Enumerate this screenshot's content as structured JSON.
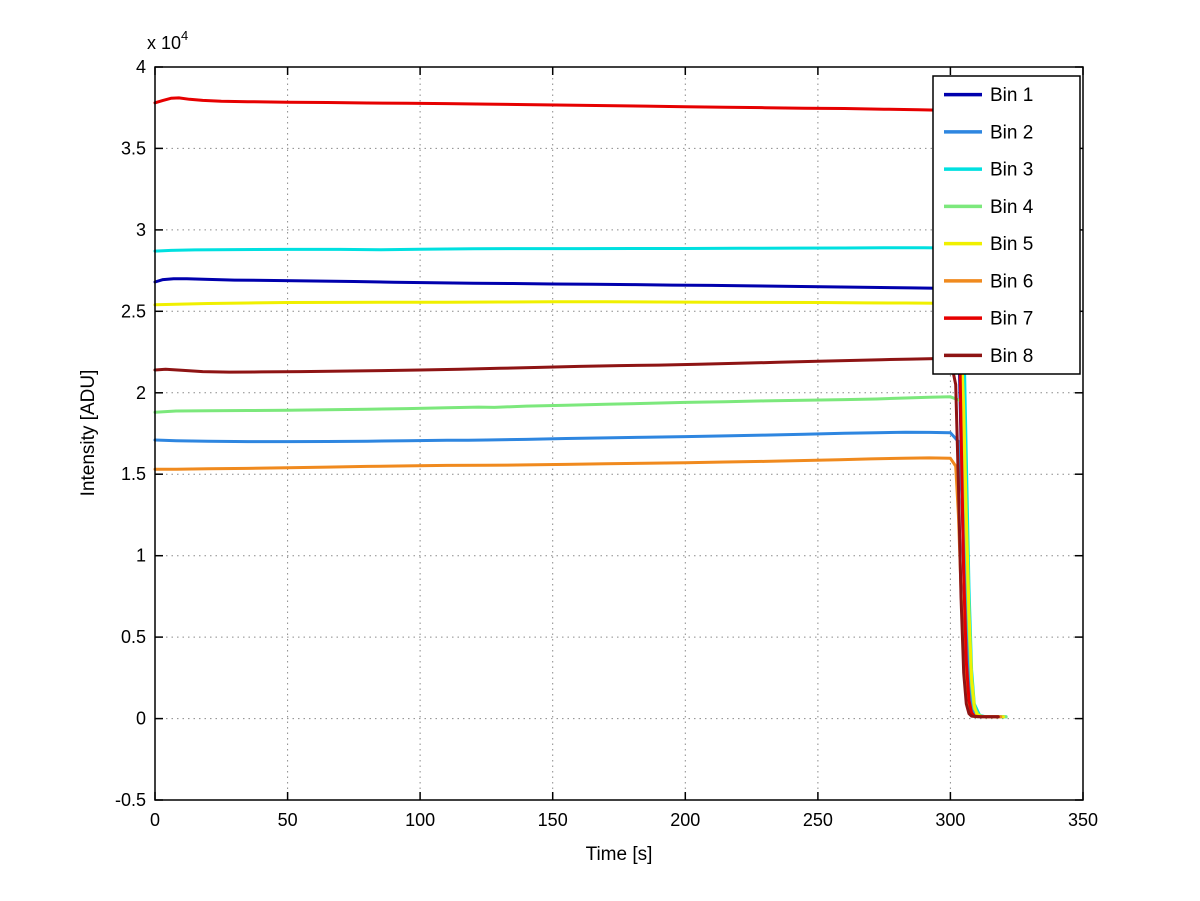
{
  "figure": {
    "background": "#ffffff"
  },
  "chart_data": {
    "type": "line",
    "title": "",
    "xlabel": "Time [s]",
    "ylabel": "Intensity [ADU]",
    "y_exponent_prefix": "x 10",
    "y_exponent": "4",
    "xlim": [
      0,
      350
    ],
    "ylim": [
      -5000,
      40000
    ],
    "x_ticks": [
      0,
      50,
      100,
      150,
      200,
      250,
      300,
      350
    ],
    "x_tick_labels": [
      "0",
      "50",
      "100",
      "150",
      "200",
      "250",
      "300",
      "350"
    ],
    "y_ticks": [
      -5000,
      0,
      5000,
      10000,
      15000,
      20000,
      25000,
      30000,
      35000,
      40000
    ],
    "y_tick_labels": [
      "-0.5",
      "0",
      "0.5",
      "1",
      "1.5",
      "2",
      "2.5",
      "3",
      "3.5",
      "4"
    ],
    "grid": true,
    "grid_style": "dotted",
    "legend_position": "top-right",
    "axes_color": "#000000",
    "background": "#ffffff",
    "series": [
      {
        "name": "Bin 1",
        "color": "#0000AD",
        "points": [
          [
            0,
            26800
          ],
          [
            3,
            26950
          ],
          [
            7,
            27000
          ],
          [
            12,
            27000
          ],
          [
            20,
            26960
          ],
          [
            30,
            26920
          ],
          [
            45,
            26890
          ],
          [
            60,
            26860
          ],
          [
            75,
            26830
          ],
          [
            90,
            26790
          ],
          [
            105,
            26760
          ],
          [
            120,
            26730
          ],
          [
            135,
            26710
          ],
          [
            150,
            26680
          ],
          [
            165,
            26660
          ],
          [
            180,
            26640
          ],
          [
            195,
            26610
          ],
          [
            210,
            26590
          ],
          [
            225,
            26560
          ],
          [
            240,
            26530
          ],
          [
            255,
            26500
          ],
          [
            270,
            26470
          ],
          [
            285,
            26440
          ],
          [
            295,
            26420
          ],
          [
            301,
            26400
          ],
          [
            303,
            24500
          ],
          [
            304,
            17000
          ],
          [
            305,
            9000
          ],
          [
            306,
            3500
          ],
          [
            307,
            1000
          ],
          [
            308,
            300
          ],
          [
            310,
            120
          ],
          [
            320,
            110
          ]
        ]
      },
      {
        "name": "Bin 2",
        "color": "#2E86E0",
        "points": [
          [
            0,
            17100
          ],
          [
            8,
            17060
          ],
          [
            20,
            17020
          ],
          [
            35,
            17000
          ],
          [
            50,
            17000
          ],
          [
            65,
            17010
          ],
          [
            80,
            17030
          ],
          [
            95,
            17060
          ],
          [
            110,
            17090
          ],
          [
            118,
            17080
          ],
          [
            125,
            17100
          ],
          [
            140,
            17140
          ],
          [
            155,
            17190
          ],
          [
            170,
            17230
          ],
          [
            185,
            17270
          ],
          [
            200,
            17310
          ],
          [
            215,
            17350
          ],
          [
            230,
            17400
          ],
          [
            245,
            17460
          ],
          [
            260,
            17510
          ],
          [
            272,
            17550
          ],
          [
            283,
            17580
          ],
          [
            292,
            17570
          ],
          [
            300,
            17550
          ],
          [
            303,
            17000
          ],
          [
            305,
            12000
          ],
          [
            306,
            6500
          ],
          [
            307,
            2500
          ],
          [
            308,
            800
          ],
          [
            309,
            300
          ],
          [
            311,
            120
          ],
          [
            320,
            110
          ]
        ]
      },
      {
        "name": "Bin 3",
        "color": "#00E0E0",
        "points": [
          [
            0,
            28700
          ],
          [
            6,
            28740
          ],
          [
            15,
            28770
          ],
          [
            30,
            28790
          ],
          [
            50,
            28800
          ],
          [
            70,
            28800
          ],
          [
            85,
            28780
          ],
          [
            100,
            28810
          ],
          [
            120,
            28840
          ],
          [
            140,
            28850
          ],
          [
            160,
            28850
          ],
          [
            180,
            28860
          ],
          [
            200,
            28860
          ],
          [
            220,
            28870
          ],
          [
            240,
            28880
          ],
          [
            260,
            28890
          ],
          [
            275,
            28900
          ],
          [
            290,
            28900
          ],
          [
            300,
            28890
          ],
          [
            304,
            28600
          ],
          [
            305,
            24000
          ],
          [
            306,
            16000
          ],
          [
            307,
            8000
          ],
          [
            308,
            3000
          ],
          [
            309,
            900
          ],
          [
            311,
            200
          ],
          [
            313,
            120
          ],
          [
            321,
            110
          ]
        ]
      },
      {
        "name": "Bin 4",
        "color": "#7CE87C",
        "points": [
          [
            0,
            18800
          ],
          [
            8,
            18880
          ],
          [
            20,
            18900
          ],
          [
            35,
            18910
          ],
          [
            50,
            18930
          ],
          [
            65,
            18960
          ],
          [
            80,
            18990
          ],
          [
            95,
            19030
          ],
          [
            110,
            19080
          ],
          [
            122,
            19120
          ],
          [
            128,
            19100
          ],
          [
            140,
            19180
          ],
          [
            155,
            19240
          ],
          [
            170,
            19290
          ],
          [
            185,
            19350
          ],
          [
            200,
            19410
          ],
          [
            215,
            19450
          ],
          [
            230,
            19500
          ],
          [
            245,
            19540
          ],
          [
            260,
            19580
          ],
          [
            272,
            19620
          ],
          [
            283,
            19680
          ],
          [
            292,
            19730
          ],
          [
            300,
            19750
          ],
          [
            304,
            19500
          ],
          [
            305,
            16500
          ],
          [
            306,
            11000
          ],
          [
            307,
            5500
          ],
          [
            308,
            2000
          ],
          [
            309,
            600
          ],
          [
            311,
            150
          ],
          [
            313,
            120
          ],
          [
            321,
            110
          ]
        ]
      },
      {
        "name": "Bin 5",
        "color": "#F0F000",
        "points": [
          [
            0,
            25400
          ],
          [
            8,
            25440
          ],
          [
            20,
            25480
          ],
          [
            35,
            25510
          ],
          [
            50,
            25540
          ],
          [
            70,
            25550
          ],
          [
            90,
            25560
          ],
          [
            110,
            25560
          ],
          [
            130,
            25570
          ],
          [
            150,
            25590
          ],
          [
            170,
            25590
          ],
          [
            190,
            25570
          ],
          [
            210,
            25560
          ],
          [
            230,
            25550
          ],
          [
            250,
            25540
          ],
          [
            268,
            25520
          ],
          [
            283,
            25510
          ],
          [
            295,
            25500
          ],
          [
            302,
            25450
          ],
          [
            304,
            23500
          ],
          [
            305,
            19000
          ],
          [
            306,
            12500
          ],
          [
            307,
            6500
          ],
          [
            308,
            2500
          ],
          [
            309,
            800
          ],
          [
            310,
            250
          ],
          [
            312,
            120
          ],
          [
            320,
            110
          ]
        ]
      },
      {
        "name": "Bin 6",
        "color": "#F08A1E",
        "points": [
          [
            0,
            15300
          ],
          [
            8,
            15310
          ],
          [
            20,
            15330
          ],
          [
            35,
            15360
          ],
          [
            50,
            15400
          ],
          [
            65,
            15440
          ],
          [
            80,
            15480
          ],
          [
            95,
            15510
          ],
          [
            110,
            15540
          ],
          [
            125,
            15550
          ],
          [
            140,
            15570
          ],
          [
            155,
            15600
          ],
          [
            170,
            15640
          ],
          [
            185,
            15670
          ],
          [
            200,
            15710
          ],
          [
            215,
            15750
          ],
          [
            230,
            15790
          ],
          [
            245,
            15840
          ],
          [
            258,
            15890
          ],
          [
            270,
            15940
          ],
          [
            282,
            15980
          ],
          [
            292,
            16000
          ],
          [
            300,
            15980
          ],
          [
            302,
            15500
          ],
          [
            303,
            12500
          ],
          [
            304,
            8000
          ],
          [
            305,
            3800
          ],
          [
            306,
            1300
          ],
          [
            307,
            400
          ],
          [
            308,
            160
          ],
          [
            310,
            120
          ],
          [
            319,
            110
          ]
        ]
      },
      {
        "name": "Bin 7",
        "color": "#E60000",
        "points": [
          [
            0,
            37800
          ],
          [
            3,
            37950
          ],
          [
            6,
            38080
          ],
          [
            9,
            38100
          ],
          [
            13,
            38020
          ],
          [
            18,
            37950
          ],
          [
            25,
            37900
          ],
          [
            35,
            37870
          ],
          [
            50,
            37840
          ],
          [
            65,
            37820
          ],
          [
            80,
            37790
          ],
          [
            95,
            37770
          ],
          [
            110,
            37750
          ],
          [
            125,
            37720
          ],
          [
            140,
            37690
          ],
          [
            155,
            37660
          ],
          [
            170,
            37630
          ],
          [
            185,
            37600
          ],
          [
            200,
            37560
          ],
          [
            215,
            37530
          ],
          [
            230,
            37500
          ],
          [
            245,
            37470
          ],
          [
            260,
            37450
          ],
          [
            275,
            37410
          ],
          [
            288,
            37370
          ],
          [
            297,
            37340
          ],
          [
            301,
            37320
          ],
          [
            302,
            35000
          ],
          [
            303,
            28000
          ],
          [
            304,
            18000
          ],
          [
            305,
            9000
          ],
          [
            306,
            3500
          ],
          [
            307,
            1100
          ],
          [
            308,
            350
          ],
          [
            309,
            150
          ],
          [
            311,
            120
          ],
          [
            318,
            110
          ]
        ]
      },
      {
        "name": "Bin 8",
        "color": "#8E1414",
        "points": [
          [
            0,
            21400
          ],
          [
            4,
            21450
          ],
          [
            10,
            21380
          ],
          [
            18,
            21300
          ],
          [
            28,
            21270
          ],
          [
            40,
            21280
          ],
          [
            55,
            21300
          ],
          [
            70,
            21330
          ],
          [
            85,
            21360
          ],
          [
            100,
            21400
          ],
          [
            115,
            21450
          ],
          [
            130,
            21500
          ],
          [
            145,
            21560
          ],
          [
            160,
            21620
          ],
          [
            175,
            21670
          ],
          [
            190,
            21700
          ],
          [
            205,
            21750
          ],
          [
            220,
            21810
          ],
          [
            235,
            21870
          ],
          [
            250,
            21930
          ],
          [
            262,
            21980
          ],
          [
            274,
            22030
          ],
          [
            285,
            22070
          ],
          [
            294,
            22100
          ],
          [
            300,
            22100
          ],
          [
            302,
            20500
          ],
          [
            303,
            14500
          ],
          [
            304,
            7500
          ],
          [
            305,
            2800
          ],
          [
            306,
            900
          ],
          [
            307,
            300
          ],
          [
            308,
            150
          ],
          [
            310,
            120
          ],
          [
            318,
            110
          ]
        ]
      }
    ]
  }
}
